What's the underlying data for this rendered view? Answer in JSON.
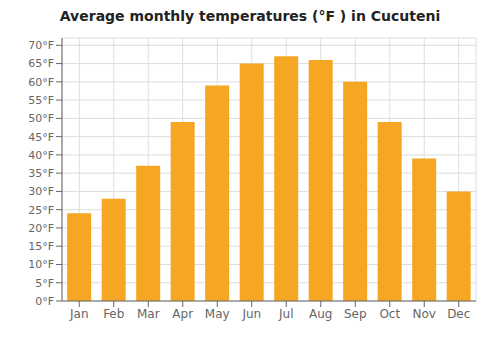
{
  "chart_data": {
    "type": "bar",
    "title": "Average monthly temperatures (°F ) in Cucuteni",
    "categories": [
      "Jan",
      "Feb",
      "Mar",
      "Apr",
      "May",
      "Jun",
      "Jul",
      "Aug",
      "Sep",
      "Oct",
      "Nov",
      "Dec"
    ],
    "values": [
      24,
      28,
      37,
      49,
      59,
      65,
      67,
      66,
      60,
      49,
      39,
      30
    ],
    "color": "#F5A623",
    "ylim": [
      0,
      72
    ],
    "yticks": [
      {
        "value": 0,
        "label": "0°F"
      },
      {
        "value": 5,
        "label": "5°F"
      },
      {
        "value": 10,
        "label": "10°F"
      },
      {
        "value": 15,
        "label": "15°F"
      },
      {
        "value": 20,
        "label": "20°F"
      },
      {
        "value": 25,
        "label": "25°F"
      },
      {
        "value": 30,
        "label": "30°F"
      },
      {
        "value": 35,
        "label": "35°F"
      },
      {
        "value": 40,
        "label": "40°F"
      },
      {
        "value": 45,
        "label": "45°F"
      },
      {
        "value": 50,
        "label": "50°F"
      },
      {
        "value": 55,
        "label": "55°F"
      },
      {
        "value": 60,
        "label": "60°F"
      },
      {
        "value": 65,
        "label": "65°F"
      },
      {
        "value": 70,
        "label": "70°F"
      }
    ],
    "grid": true
  }
}
